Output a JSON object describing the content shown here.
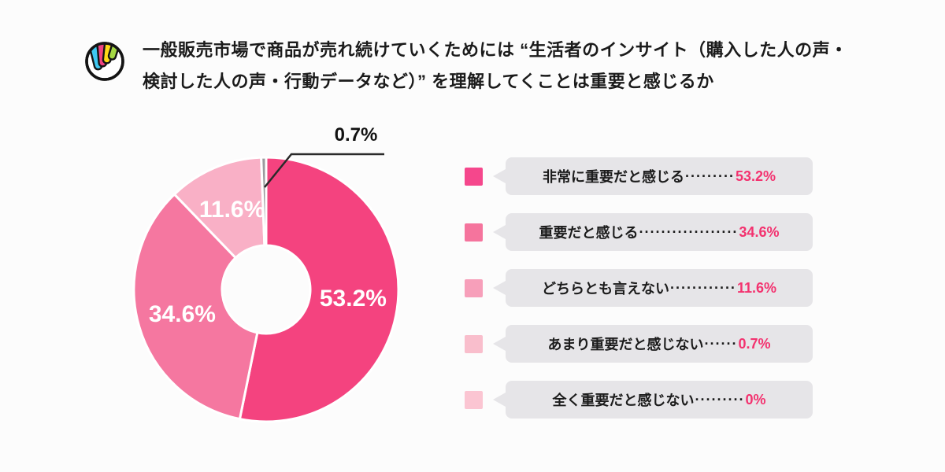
{
  "page": {
    "background": "#FCFCFC"
  },
  "header": {
    "title_line1": "一般販売市場で商品が売れ続けていくためには “生活者のインサイト（購入した人の声・",
    "title_line2": "検討した人の声・行動データなど）” を理解してくことは重要と感じるか",
    "logo_colors": {
      "outline": "#141414",
      "bar_cyan": "#3EC9F2",
      "bar_pink": "#F0437F",
      "bar_yellow": "#FFD916",
      "bar_green": "#A5D944"
    }
  },
  "chart_data": {
    "type": "pie",
    "donut": true,
    "direction": "clockwise",
    "start_angle_deg_from_top": 0,
    "title": "一般販売市場で商品が売れ続けていくためには “生活者のインサイト（購入した人の声・検討した人の声・行動データなど）” を理解してくことは重要と感じるか",
    "categories": [
      "非常に重要だと感じる",
      "重要だと感じる",
      "どちらとも言えない",
      "あまり重要だと感じない",
      "全く重要だと感じない"
    ],
    "values": [
      53.2,
      34.6,
      11.6,
      0.7,
      0
    ],
    "slice_colors": [
      "#F4437F",
      "#F577A0",
      "#F9B0C6",
      "#9B9A9E",
      "#FBC5D2"
    ],
    "slice_labels": [
      "53.2%",
      "34.6%",
      "11.6%",
      "",
      ""
    ],
    "slice_stroke": "#FFFFFF",
    "callout": {
      "label": "0.7%",
      "slice_index": 3,
      "line_color": "#2A2A2A"
    },
    "legend_position": "right"
  },
  "legend": {
    "bubble_bg": "#E6E5E8",
    "pct_color": "#F3326F",
    "items": [
      {
        "swatch": "#F5478C",
        "label": "非常に重要だと感じる",
        "dots": "·········",
        "pct": "53.2%"
      },
      {
        "swatch": "#F5749D",
        "label": "重要だと感じる",
        "dots": "··················",
        "pct": "34.6%"
      },
      {
        "swatch": "#F79FBA",
        "label": "どちらとも言えない",
        "dots": "············",
        "pct": "11.6%"
      },
      {
        "swatch": "#F9BECC",
        "label": "あまり重要だと感じない",
        "dots": "······",
        "pct": "0.7%"
      },
      {
        "swatch": "#FBC5D2",
        "label": "全く重要だと感じない",
        "dots": "·········",
        "pct": "0%"
      }
    ]
  }
}
